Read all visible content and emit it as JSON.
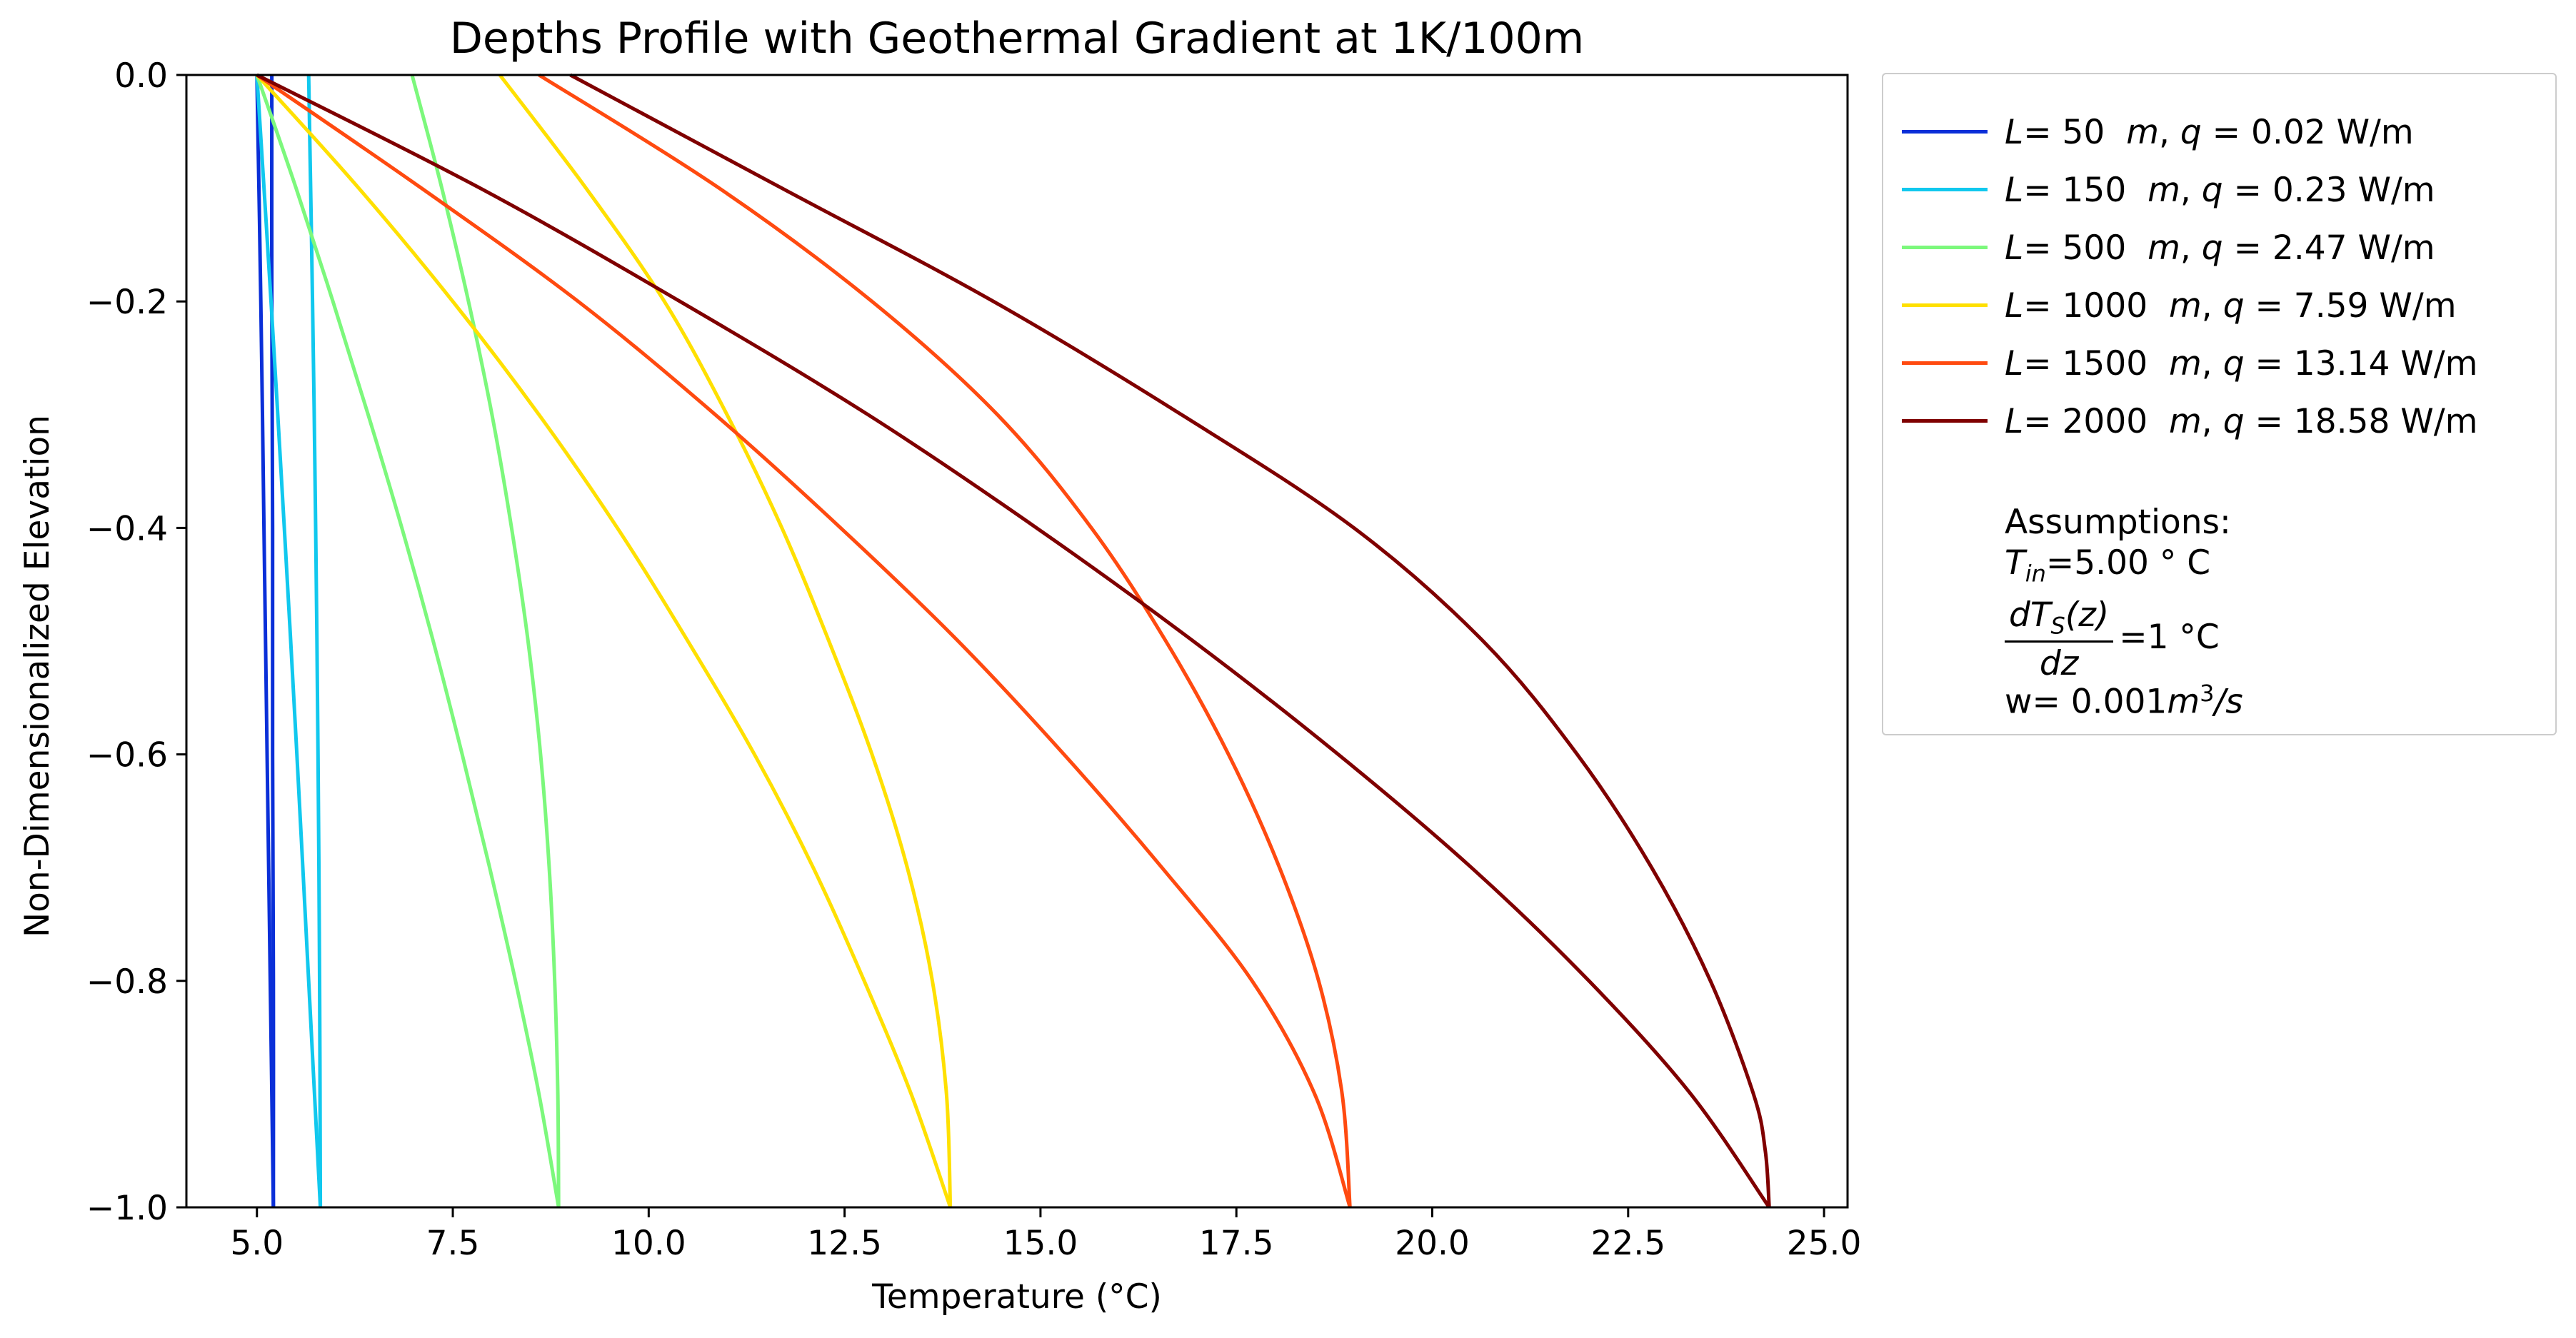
{
  "chart_data": {
    "type": "line",
    "title": "Depths Profile with Geothermal Gradient at 1K/100m",
    "xlabel": "Temperature (°C)",
    "ylabel": "Non-Dimensionalized Elevation",
    "xlim": [
      4.1,
      25.3
    ],
    "ylim": [
      -1.0,
      0.0
    ],
    "xticks": [
      5.0,
      7.5,
      10.0,
      12.5,
      15.0,
      17.5,
      20.0,
      22.5,
      25.0
    ],
    "xtick_labels": [
      "5.0",
      "7.5",
      "10.0",
      "12.5",
      "15.0",
      "17.5",
      "20.0",
      "22.5",
      "25.0"
    ],
    "yticks": [
      0.0,
      -0.2,
      -0.4,
      -0.6,
      -0.8,
      -1.0
    ],
    "ytick_labels": [
      "0.0",
      "−0.2",
      "−0.4",
      "−0.6",
      "−0.8",
      "−1.0"
    ],
    "grid": false,
    "legend_position": "outside-right",
    "series": [
      {
        "L": "50",
        "q": "0.02",
        "color": "#0a2fd8",
        "down": [
          [
            0.0,
            5.0
          ],
          [
            -0.2,
            5.05
          ],
          [
            -0.4,
            5.09
          ],
          [
            -0.6,
            5.13
          ],
          [
            -0.8,
            5.17
          ],
          [
            -1.0,
            5.21
          ]
        ],
        "up": [
          [
            -1.0,
            5.21
          ],
          [
            -0.8,
            5.21
          ],
          [
            -0.6,
            5.2
          ],
          [
            -0.4,
            5.2
          ],
          [
            -0.2,
            5.19
          ],
          [
            0.0,
            5.19
          ]
        ]
      },
      {
        "L": "150",
        "q": "0.23",
        "color": "#11c8ee",
        "down": [
          [
            0.0,
            5.0
          ],
          [
            -0.2,
            5.18
          ],
          [
            -0.4,
            5.35
          ],
          [
            -0.6,
            5.51
          ],
          [
            -0.8,
            5.66
          ],
          [
            -1.0,
            5.81
          ]
        ],
        "up": [
          [
            -1.0,
            5.81
          ],
          [
            -0.8,
            5.8
          ],
          [
            -0.6,
            5.78
          ],
          [
            -0.4,
            5.75
          ],
          [
            -0.2,
            5.71
          ],
          [
            0.0,
            5.66
          ]
        ]
      },
      {
        "L": "500",
        "q": "2.47",
        "color": "#7cf87c",
        "down": [
          [
            0.0,
            5.0
          ],
          [
            -0.1,
            5.5
          ],
          [
            -0.2,
            5.97
          ],
          [
            -0.3,
            6.42
          ],
          [
            -0.4,
            6.85
          ],
          [
            -0.5,
            7.25
          ],
          [
            -0.6,
            7.62
          ],
          [
            -0.7,
            7.97
          ],
          [
            -0.8,
            8.3
          ],
          [
            -0.9,
            8.6
          ],
          [
            -1.0,
            8.85
          ]
        ],
        "up": [
          [
            -1.0,
            8.85
          ],
          [
            -0.9,
            8.84
          ],
          [
            -0.8,
            8.8
          ],
          [
            -0.7,
            8.73
          ],
          [
            -0.6,
            8.62
          ],
          [
            -0.5,
            8.46
          ],
          [
            -0.4,
            8.25
          ],
          [
            -0.3,
            8.0
          ],
          [
            -0.2,
            7.7
          ],
          [
            -0.1,
            7.36
          ],
          [
            0.0,
            6.98
          ]
        ]
      },
      {
        "L": "1000",
        "q": "7.59",
        "color": "#ffe000",
        "down": [
          [
            0.0,
            5.0
          ],
          [
            -0.1,
            6.3
          ],
          [
            -0.2,
            7.5
          ],
          [
            -0.3,
            8.6
          ],
          [
            -0.4,
            9.6
          ],
          [
            -0.5,
            10.5
          ],
          [
            -0.6,
            11.35
          ],
          [
            -0.7,
            12.1
          ],
          [
            -0.8,
            12.75
          ],
          [
            -0.9,
            13.35
          ],
          [
            -1.0,
            13.85
          ]
        ],
        "up": [
          [
            -1.0,
            13.85
          ],
          [
            -0.9,
            13.8
          ],
          [
            -0.8,
            13.62
          ],
          [
            -0.7,
            13.3
          ],
          [
            -0.6,
            12.85
          ],
          [
            -0.5,
            12.3
          ],
          [
            -0.4,
            11.7
          ],
          [
            -0.3,
            11.0
          ],
          [
            -0.2,
            10.2
          ],
          [
            -0.1,
            9.2
          ],
          [
            0.0,
            8.1
          ]
        ]
      },
      {
        "L": "1500",
        "q": "13.14",
        "color": "#ff4a10",
        "down": [
          [
            0.0,
            5.0
          ],
          [
            -0.1,
            7.1
          ],
          [
            -0.2,
            9.1
          ],
          [
            -0.3,
            10.85
          ],
          [
            -0.4,
            12.45
          ],
          [
            -0.5,
            13.95
          ],
          [
            -0.6,
            15.3
          ],
          [
            -0.7,
            16.55
          ],
          [
            -0.8,
            17.7
          ],
          [
            -0.9,
            18.5
          ],
          [
            -1.0,
            18.95
          ]
        ],
        "up": [
          [
            -1.0,
            18.95
          ],
          [
            -0.9,
            18.85
          ],
          [
            -0.8,
            18.55
          ],
          [
            -0.7,
            18.05
          ],
          [
            -0.6,
            17.4
          ],
          [
            -0.5,
            16.6
          ],
          [
            -0.4,
            15.65
          ],
          [
            -0.3,
            14.45
          ],
          [
            -0.2,
            12.85
          ],
          [
            -0.1,
            10.9
          ],
          [
            0.0,
            8.6
          ]
        ]
      },
      {
        "L": "2000",
        "q": "18.58",
        "color": "#7f0000",
        "down": [
          [
            0.0,
            5.0
          ],
          [
            -0.1,
            7.85
          ],
          [
            -0.2,
            10.4
          ],
          [
            -0.3,
            12.8
          ],
          [
            -0.4,
            14.95
          ],
          [
            -0.5,
            16.95
          ],
          [
            -0.6,
            18.8
          ],
          [
            -0.7,
            20.5
          ],
          [
            -0.8,
            22.0
          ],
          [
            -0.9,
            23.3
          ],
          [
            -1.0,
            24.3
          ]
        ],
        "up": [
          [
            -1.0,
            24.3
          ],
          [
            -0.95,
            24.25
          ],
          [
            -0.9,
            24.1
          ],
          [
            -0.8,
            23.55
          ],
          [
            -0.7,
            22.8
          ],
          [
            -0.6,
            21.85
          ],
          [
            -0.5,
            20.65
          ],
          [
            -0.4,
            19.0
          ],
          [
            -0.3,
            16.8
          ],
          [
            -0.2,
            14.4
          ],
          [
            -0.1,
            11.7
          ],
          [
            0.0,
            9.0
          ]
        ]
      }
    ]
  },
  "legend": {
    "m_unit": "m",
    "q_unit": "W/m",
    "assumptions_heading": "Assumptions:",
    "t_in_value": "=5.00 ° C",
    "gradient_value": "=1 °C",
    "flow_prefix": "w= 0.001",
    "flow_unit": "m",
    "flow_exp": "3",
    "flow_suffix": "/s"
  }
}
